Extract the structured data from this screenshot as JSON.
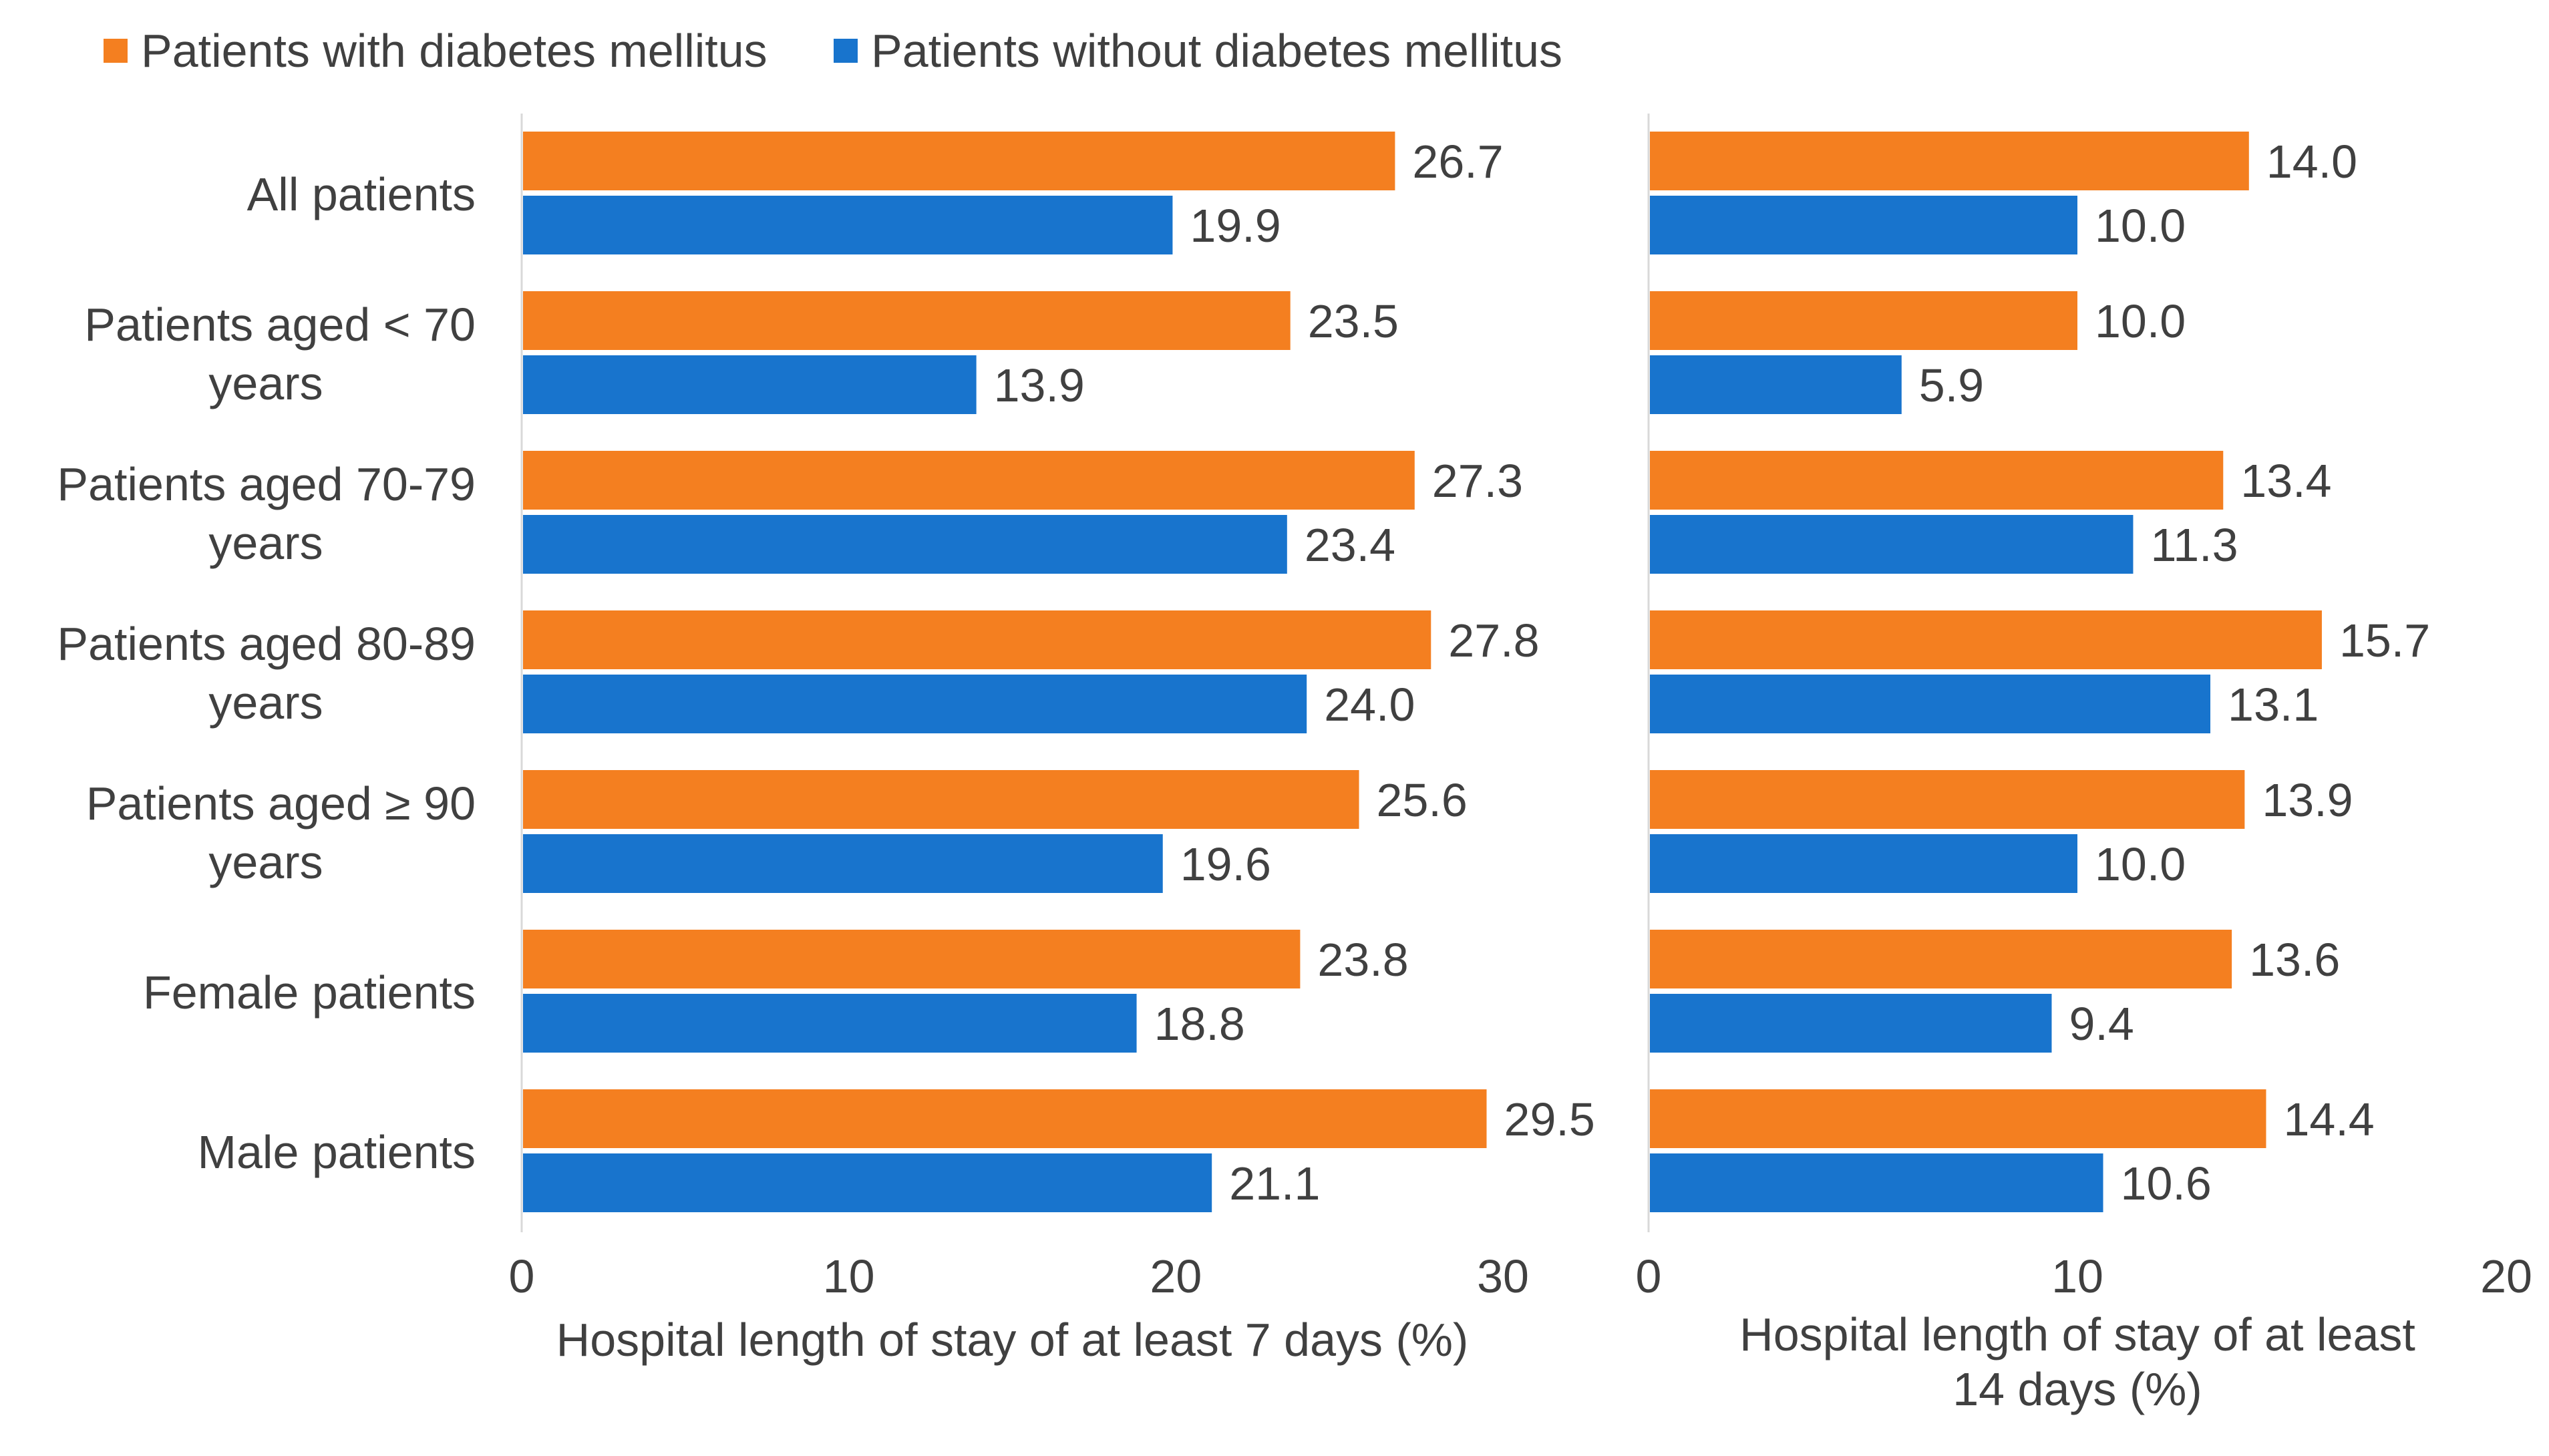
{
  "legend": {
    "entries": [
      {
        "label": "Patients with diabetes mellitus",
        "color": "#F47F20"
      },
      {
        "label": "Patients without diabetes mellitus",
        "color": "#1874CD"
      }
    ]
  },
  "chart_data": [
    {
      "type": "bar",
      "orientation": "horizontal",
      "categories": [
        "All patients",
        "Patients aged < 70 years",
        "Patients aged 70-79 years",
        "Patients aged 80-89 years",
        "Patients aged ≥ 90 years",
        "Female patients",
        "Male patients"
      ],
      "category_lines": [
        [
          "All patients"
        ],
        [
          "Patients aged < 70",
          "years"
        ],
        [
          "Patients aged 70-79",
          "years"
        ],
        [
          "Patients aged 80-89",
          "years"
        ],
        [
          "Patients aged ≥ 90",
          "years"
        ],
        [
          "Female patients"
        ],
        [
          "Male patients"
        ]
      ],
      "series": [
        {
          "name": "Patients with diabetes mellitus",
          "color": "#F47F20",
          "values": [
            26.7,
            23.5,
            27.3,
            27.8,
            25.6,
            23.8,
            29.5
          ],
          "labels": [
            "26.7",
            "23.5",
            "27.3",
            "27.8",
            "25.6",
            "23.8",
            "29.5"
          ]
        },
        {
          "name": "Patients without diabetes mellitus",
          "color": "#1874CD",
          "values": [
            19.9,
            13.9,
            23.4,
            24.0,
            19.6,
            18.8,
            21.1
          ],
          "labels": [
            "19.9",
            "13.9",
            "23.4",
            "24.0",
            "19.6",
            "18.8",
            "21.1"
          ]
        }
      ],
      "xlabel": "Hospital length of stay of at least 7 days (%)",
      "xlabel_lines": [
        "Hospital length of stay of at least 7 days (%)"
      ],
      "xlim": [
        0,
        30
      ],
      "xticks": [
        "0",
        "10",
        "20",
        "30"
      ]
    },
    {
      "type": "bar",
      "orientation": "horizontal",
      "categories": [
        "All patients",
        "Patients aged < 70 years",
        "Patients aged 70-79 years",
        "Patients aged 80-89 years",
        "Patients aged ≥ 90 years",
        "Female patients",
        "Male patients"
      ],
      "series": [
        {
          "name": "Patients with diabetes mellitus",
          "color": "#F47F20",
          "values": [
            14.0,
            10.0,
            13.4,
            15.7,
            13.9,
            13.6,
            14.4
          ],
          "labels": [
            "14.0",
            "10.0",
            "13.4",
            "15.7",
            "13.9",
            "13.6",
            "14.4"
          ]
        },
        {
          "name": "Patients without diabetes mellitus",
          "color": "#1874CD",
          "values": [
            10.0,
            5.9,
            11.3,
            13.1,
            10.0,
            9.4,
            10.6
          ],
          "labels": [
            "10.0",
            "5.9",
            "11.3",
            "13.1",
            "10.0",
            "9.4",
            "10.6"
          ]
        }
      ],
      "xlabel": "Hospital length of stay of at least 14 days (%)",
      "xlabel_lines": [
        "Hospital length of stay of at least",
        "14 days (%)"
      ],
      "xlim": [
        0,
        20
      ],
      "xticks": [
        "0",
        "10",
        "20"
      ]
    }
  ]
}
